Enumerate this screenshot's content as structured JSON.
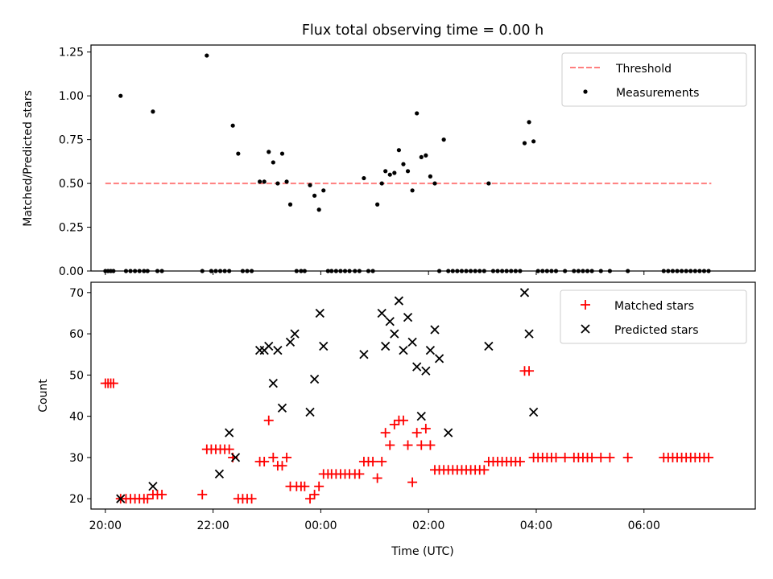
{
  "title": "Flux total observing time = 0.00 h",
  "chart_data": [
    {
      "type": "scatter",
      "ylabel": "Matched/Predicted stars",
      "xlim": [
        "19:44",
        "08:04"
      ],
      "ylim": [
        0,
        1.29
      ],
      "yticks": [
        "0.00",
        "0.25",
        "0.50",
        "0.75",
        "1.00",
        "1.25"
      ],
      "grid": false,
      "legend_position": "top-right",
      "threshold": {
        "label": "Threshold",
        "value": 0.5,
        "x_from": "20:00",
        "x_to": "07:15",
        "color": "#ff7f7f",
        "style": "dashed"
      },
      "series": [
        {
          "name": "Measurements",
          "color": "#000000",
          "points": [
            [
              "20:00",
              0
            ],
            [
              "20:03",
              0
            ],
            [
              "20:06",
              0
            ],
            [
              "20:09",
              0
            ],
            [
              "20:17",
              1.0
            ],
            [
              "20:23",
              0
            ],
            [
              "20:28",
              0
            ],
            [
              "20:33",
              0
            ],
            [
              "20:38",
              0
            ],
            [
              "20:43",
              0
            ],
            [
              "20:47",
              0
            ],
            [
              "20:53",
              0.91
            ],
            [
              "20:58",
              0
            ],
            [
              "21:03",
              0
            ],
            [
              "21:48",
              0
            ],
            [
              "21:53",
              1.23
            ],
            [
              "21:58",
              0
            ],
            [
              "22:03",
              0
            ],
            [
              "22:08",
              0
            ],
            [
              "22:13",
              0
            ],
            [
              "22:18",
              0
            ],
            [
              "22:22",
              0.83
            ],
            [
              "22:28",
              0.67
            ],
            [
              "22:33",
              0
            ],
            [
              "22:38",
              0
            ],
            [
              "22:43",
              0
            ],
            [
              "22:52",
              0.51
            ],
            [
              "22:57",
              0.51
            ],
            [
              "23:02",
              0.68
            ],
            [
              "23:07",
              0.62
            ],
            [
              "23:12",
              0.5
            ],
            [
              "23:17",
              0.67
            ],
            [
              "23:22",
              0.51
            ],
            [
              "23:26",
              0.38
            ],
            [
              "23:33",
              0
            ],
            [
              "23:38",
              0
            ],
            [
              "23:42",
              0
            ],
            [
              "23:48",
              0.49
            ],
            [
              "23:53",
              0.43
            ],
            [
              "23:58",
              0.35
            ],
            [
              "00:03",
              0.46
            ],
            [
              "00:08",
              0
            ],
            [
              "00:12",
              0
            ],
            [
              "00:17",
              0
            ],
            [
              "00:22",
              0
            ],
            [
              "00:27",
              0
            ],
            [
              "00:32",
              0
            ],
            [
              "00:38",
              0
            ],
            [
              "00:43",
              0
            ],
            [
              "00:48",
              0.53
            ],
            [
              "00:53",
              0
            ],
            [
              "00:58",
              0
            ],
            [
              "01:03",
              0.38
            ],
            [
              "01:08",
              0.5
            ],
            [
              "01:12",
              0.57
            ],
            [
              "01:17",
              0.55
            ],
            [
              "01:22",
              0.56
            ],
            [
              "01:27",
              0.69
            ],
            [
              "01:32",
              0.61
            ],
            [
              "01:37",
              0.57
            ],
            [
              "01:42",
              0.46
            ],
            [
              "01:47",
              0.9
            ],
            [
              "01:52",
              0.65
            ],
            [
              "01:57",
              0.66
            ],
            [
              "02:02",
              0.54
            ],
            [
              "02:07",
              0.5
            ],
            [
              "02:12",
              0
            ],
            [
              "02:17",
              0.75
            ],
            [
              "02:22",
              0
            ],
            [
              "02:27",
              0
            ],
            [
              "02:32",
              0
            ],
            [
              "02:37",
              0
            ],
            [
              "02:42",
              0
            ],
            [
              "02:47",
              0
            ],
            [
              "02:52",
              0
            ],
            [
              "02:57",
              0
            ],
            [
              "03:02",
              0
            ],
            [
              "03:07",
              0.5
            ],
            [
              "03:12",
              0
            ],
            [
              "03:17",
              0
            ],
            [
              "03:22",
              0
            ],
            [
              "03:27",
              0
            ],
            [
              "03:32",
              0
            ],
            [
              "03:37",
              0
            ],
            [
              "03:42",
              0
            ],
            [
              "03:47",
              0.73
            ],
            [
              "03:52",
              0.85
            ],
            [
              "03:57",
              0.74
            ],
            [
              "04:02",
              0
            ],
            [
              "04:07",
              0
            ],
            [
              "04:12",
              0
            ],
            [
              "04:17",
              0
            ],
            [
              "04:22",
              0
            ],
            [
              "04:32",
              0
            ],
            [
              "04:42",
              0
            ],
            [
              "04:47",
              0
            ],
            [
              "04:52",
              0
            ],
            [
              "04:57",
              0
            ],
            [
              "05:02",
              0
            ],
            [
              "05:12",
              0
            ],
            [
              "05:22",
              0
            ],
            [
              "05:42",
              0
            ],
            [
              "06:22",
              0
            ],
            [
              "06:27",
              0
            ],
            [
              "06:32",
              0
            ],
            [
              "06:37",
              0
            ],
            [
              "06:42",
              0
            ],
            [
              "06:47",
              0
            ],
            [
              "06:52",
              0
            ],
            [
              "06:57",
              0
            ],
            [
              "07:02",
              0
            ],
            [
              "07:07",
              0
            ],
            [
              "07:12",
              0
            ]
          ]
        }
      ]
    },
    {
      "type": "scatter",
      "xlabel": "Time (UTC)",
      "ylabel": "Count",
      "xlim": [
        "19:44",
        "08:04"
      ],
      "ylim": [
        17.5,
        72.5
      ],
      "yticks": [
        "20",
        "30",
        "40",
        "50",
        "60",
        "70"
      ],
      "xticks": [
        "20:00",
        "22:00",
        "00:00",
        "02:00",
        "04:00",
        "06:00"
      ],
      "grid": false,
      "legend_position": "top-right",
      "series": [
        {
          "name": "Matched stars",
          "marker": "+",
          "color": "#ff0000",
          "points": [
            [
              "20:00",
              48
            ],
            [
              "20:03",
              48
            ],
            [
              "20:06",
              48
            ],
            [
              "20:09",
              48
            ],
            [
              "20:17",
              20
            ],
            [
              "20:23",
              20
            ],
            [
              "20:28",
              20
            ],
            [
              "20:33",
              20
            ],
            [
              "20:38",
              20
            ],
            [
              "20:43",
              20
            ],
            [
              "20:47",
              20
            ],
            [
              "20:53",
              21
            ],
            [
              "20:58",
              21
            ],
            [
              "21:03",
              21
            ],
            [
              "21:48",
              21
            ],
            [
              "21:53",
              32
            ],
            [
              "21:58",
              32
            ],
            [
              "22:03",
              32
            ],
            [
              "22:08",
              32
            ],
            [
              "22:13",
              32
            ],
            [
              "22:18",
              32
            ],
            [
              "22:22",
              30
            ],
            [
              "22:28",
              20
            ],
            [
              "22:33",
              20
            ],
            [
              "22:38",
              20
            ],
            [
              "22:43",
              20
            ],
            [
              "22:52",
              29
            ],
            [
              "22:57",
              29
            ],
            [
              "23:02",
              39
            ],
            [
              "23:07",
              30
            ],
            [
              "23:12",
              28
            ],
            [
              "23:17",
              28
            ],
            [
              "23:22",
              30
            ],
            [
              "23:26",
              23
            ],
            [
              "23:33",
              23
            ],
            [
              "23:38",
              23
            ],
            [
              "23:42",
              23
            ],
            [
              "23:48",
              20
            ],
            [
              "23:53",
              21
            ],
            [
              "23:58",
              23
            ],
            [
              "00:03",
              26
            ],
            [
              "00:08",
              26
            ],
            [
              "00:12",
              26
            ],
            [
              "00:17",
              26
            ],
            [
              "00:22",
              26
            ],
            [
              "00:27",
              26
            ],
            [
              "00:32",
              26
            ],
            [
              "00:38",
              26
            ],
            [
              "00:43",
              26
            ],
            [
              "00:48",
              29
            ],
            [
              "00:53",
              29
            ],
            [
              "00:58",
              29
            ],
            [
              "01:03",
              25
            ],
            [
              "01:08",
              29
            ],
            [
              "01:12",
              36
            ],
            [
              "01:17",
              33
            ],
            [
              "01:22",
              38
            ],
            [
              "01:27",
              39
            ],
            [
              "01:32",
              39
            ],
            [
              "01:37",
              33
            ],
            [
              "01:42",
              24
            ],
            [
              "01:47",
              36
            ],
            [
              "01:52",
              33
            ],
            [
              "01:57",
              37
            ],
            [
              "02:02",
              33
            ],
            [
              "02:07",
              27
            ],
            [
              "02:12",
              27
            ],
            [
              "02:17",
              27
            ],
            [
              "02:22",
              27
            ],
            [
              "02:27",
              27
            ],
            [
              "02:32",
              27
            ],
            [
              "02:37",
              27
            ],
            [
              "02:42",
              27
            ],
            [
              "02:47",
              27
            ],
            [
              "02:52",
              27
            ],
            [
              "02:57",
              27
            ],
            [
              "03:02",
              27
            ],
            [
              "03:07",
              29
            ],
            [
              "03:12",
              29
            ],
            [
              "03:17",
              29
            ],
            [
              "03:22",
              29
            ],
            [
              "03:27",
              29
            ],
            [
              "03:32",
              29
            ],
            [
              "03:37",
              29
            ],
            [
              "03:42",
              29
            ],
            [
              "03:47",
              51
            ],
            [
              "03:52",
              51
            ],
            [
              "03:57",
              30
            ],
            [
              "04:02",
              30
            ],
            [
              "04:07",
              30
            ],
            [
              "04:12",
              30
            ],
            [
              "04:17",
              30
            ],
            [
              "04:22",
              30
            ],
            [
              "04:32",
              30
            ],
            [
              "04:42",
              30
            ],
            [
              "04:47",
              30
            ],
            [
              "04:52",
              30
            ],
            [
              "04:57",
              30
            ],
            [
              "05:02",
              30
            ],
            [
              "05:12",
              30
            ],
            [
              "05:22",
              30
            ],
            [
              "05:42",
              30
            ],
            [
              "06:22",
              30
            ],
            [
              "06:27",
              30
            ],
            [
              "06:32",
              30
            ],
            [
              "06:37",
              30
            ],
            [
              "06:42",
              30
            ],
            [
              "06:47",
              30
            ],
            [
              "06:52",
              30
            ],
            [
              "06:57",
              30
            ],
            [
              "07:02",
              30
            ],
            [
              "07:07",
              30
            ],
            [
              "07:12",
              30
            ]
          ]
        },
        {
          "name": "Predicted stars",
          "marker": "x",
          "color": "#000000",
          "points": [
            [
              "20:17",
              20
            ],
            [
              "20:53",
              23
            ],
            [
              "22:07",
              26
            ],
            [
              "22:18",
              36
            ],
            [
              "22:25",
              30
            ],
            [
              "22:52",
              56
            ],
            [
              "22:57",
              56
            ],
            [
              "23:02",
              57
            ],
            [
              "23:07",
              48
            ],
            [
              "23:12",
              56
            ],
            [
              "23:17",
              42
            ],
            [
              "23:26",
              58
            ],
            [
              "23:31",
              60
            ],
            [
              "23:48",
              41
            ],
            [
              "23:53",
              49
            ],
            [
              "23:59",
              65
            ],
            [
              "00:03",
              57
            ],
            [
              "00:48",
              55
            ],
            [
              "01:08",
              65
            ],
            [
              "01:12",
              57
            ],
            [
              "01:17",
              63
            ],
            [
              "01:22",
              60
            ],
            [
              "01:27",
              68
            ],
            [
              "01:32",
              56
            ],
            [
              "01:37",
              64
            ],
            [
              "01:42",
              58
            ],
            [
              "01:47",
              52
            ],
            [
              "01:52",
              40
            ],
            [
              "01:57",
              51
            ],
            [
              "02:02",
              56
            ],
            [
              "02:07",
              61
            ],
            [
              "02:12",
              54
            ],
            [
              "02:22",
              36
            ],
            [
              "03:07",
              57
            ],
            [
              "03:47",
              70
            ],
            [
              "03:52",
              60
            ],
            [
              "03:57",
              41
            ]
          ]
        }
      ]
    }
  ]
}
